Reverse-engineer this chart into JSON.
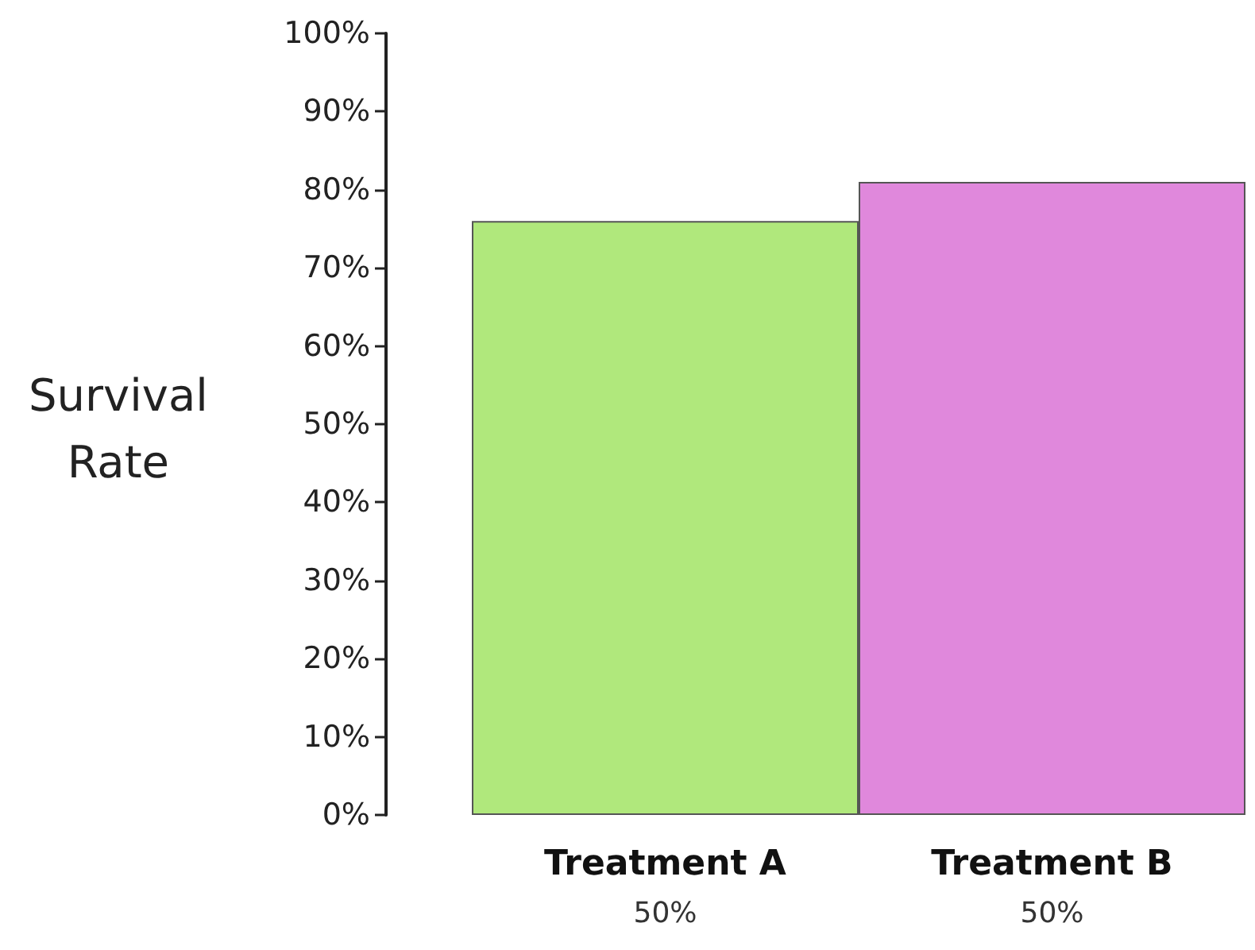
{
  "chart_data": {
    "type": "bar",
    "ylabel": "Survival\nRate",
    "categories": [
      "Treatment A",
      "Treatment B"
    ],
    "values": [
      76,
      81
    ],
    "colors": [
      "#b0e87c",
      "#e088dc"
    ],
    "ylim": [
      0,
      100
    ],
    "yticks": [
      {
        "value": 0,
        "label": "0%"
      },
      {
        "value": 10,
        "label": "10%"
      },
      {
        "value": 20,
        "label": "20%"
      },
      {
        "value": 30,
        "label": "30%"
      },
      {
        "value": 40,
        "label": "40%"
      },
      {
        "value": 50,
        "label": "50%"
      },
      {
        "value": 60,
        "label": "60%"
      },
      {
        "value": 70,
        "label": "70%"
      },
      {
        "value": 80,
        "label": "80%"
      },
      {
        "value": 90,
        "label": "90%"
      },
      {
        "value": 100,
        "label": "100%"
      }
    ],
    "annotations": [
      "50%",
      "50%"
    ]
  }
}
